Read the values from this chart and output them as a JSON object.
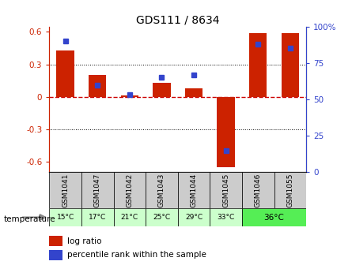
{
  "title": "GDS111 / 8634",
  "samples": [
    "GSM1041",
    "GSM1047",
    "GSM1042",
    "GSM1043",
    "GSM1044",
    "GSM1045",
    "GSM1046",
    "GSM1055"
  ],
  "temperatures": [
    "15°C",
    "17°C",
    "21°C",
    "25°C",
    "29°C",
    "33°C",
    "36°C"
  ],
  "log_ratios": [
    0.43,
    0.2,
    0.01,
    0.13,
    0.08,
    -0.65,
    0.585,
    0.585
  ],
  "percentiles": [
    90,
    60,
    53,
    65,
    67,
    15,
    88,
    85
  ],
  "bar_color": "#cc2200",
  "blue_color": "#3344cc",
  "bg_sample_gray": "#cccccc",
  "bg_temp_light": "#ccffcc",
  "bg_temp_dark": "#55ee55",
  "zero_line_color": "#cc0000",
  "ylim_left": [
    -0.7,
    0.65
  ],
  "ylim_right": [
    0,
    100
  ],
  "yticks_left": [
    -0.6,
    -0.3,
    0.0,
    0.3,
    0.6
  ],
  "yticks_right": [
    0,
    25,
    50,
    75,
    100
  ],
  "bar_width": 0.55,
  "temperature_label": "temperature"
}
